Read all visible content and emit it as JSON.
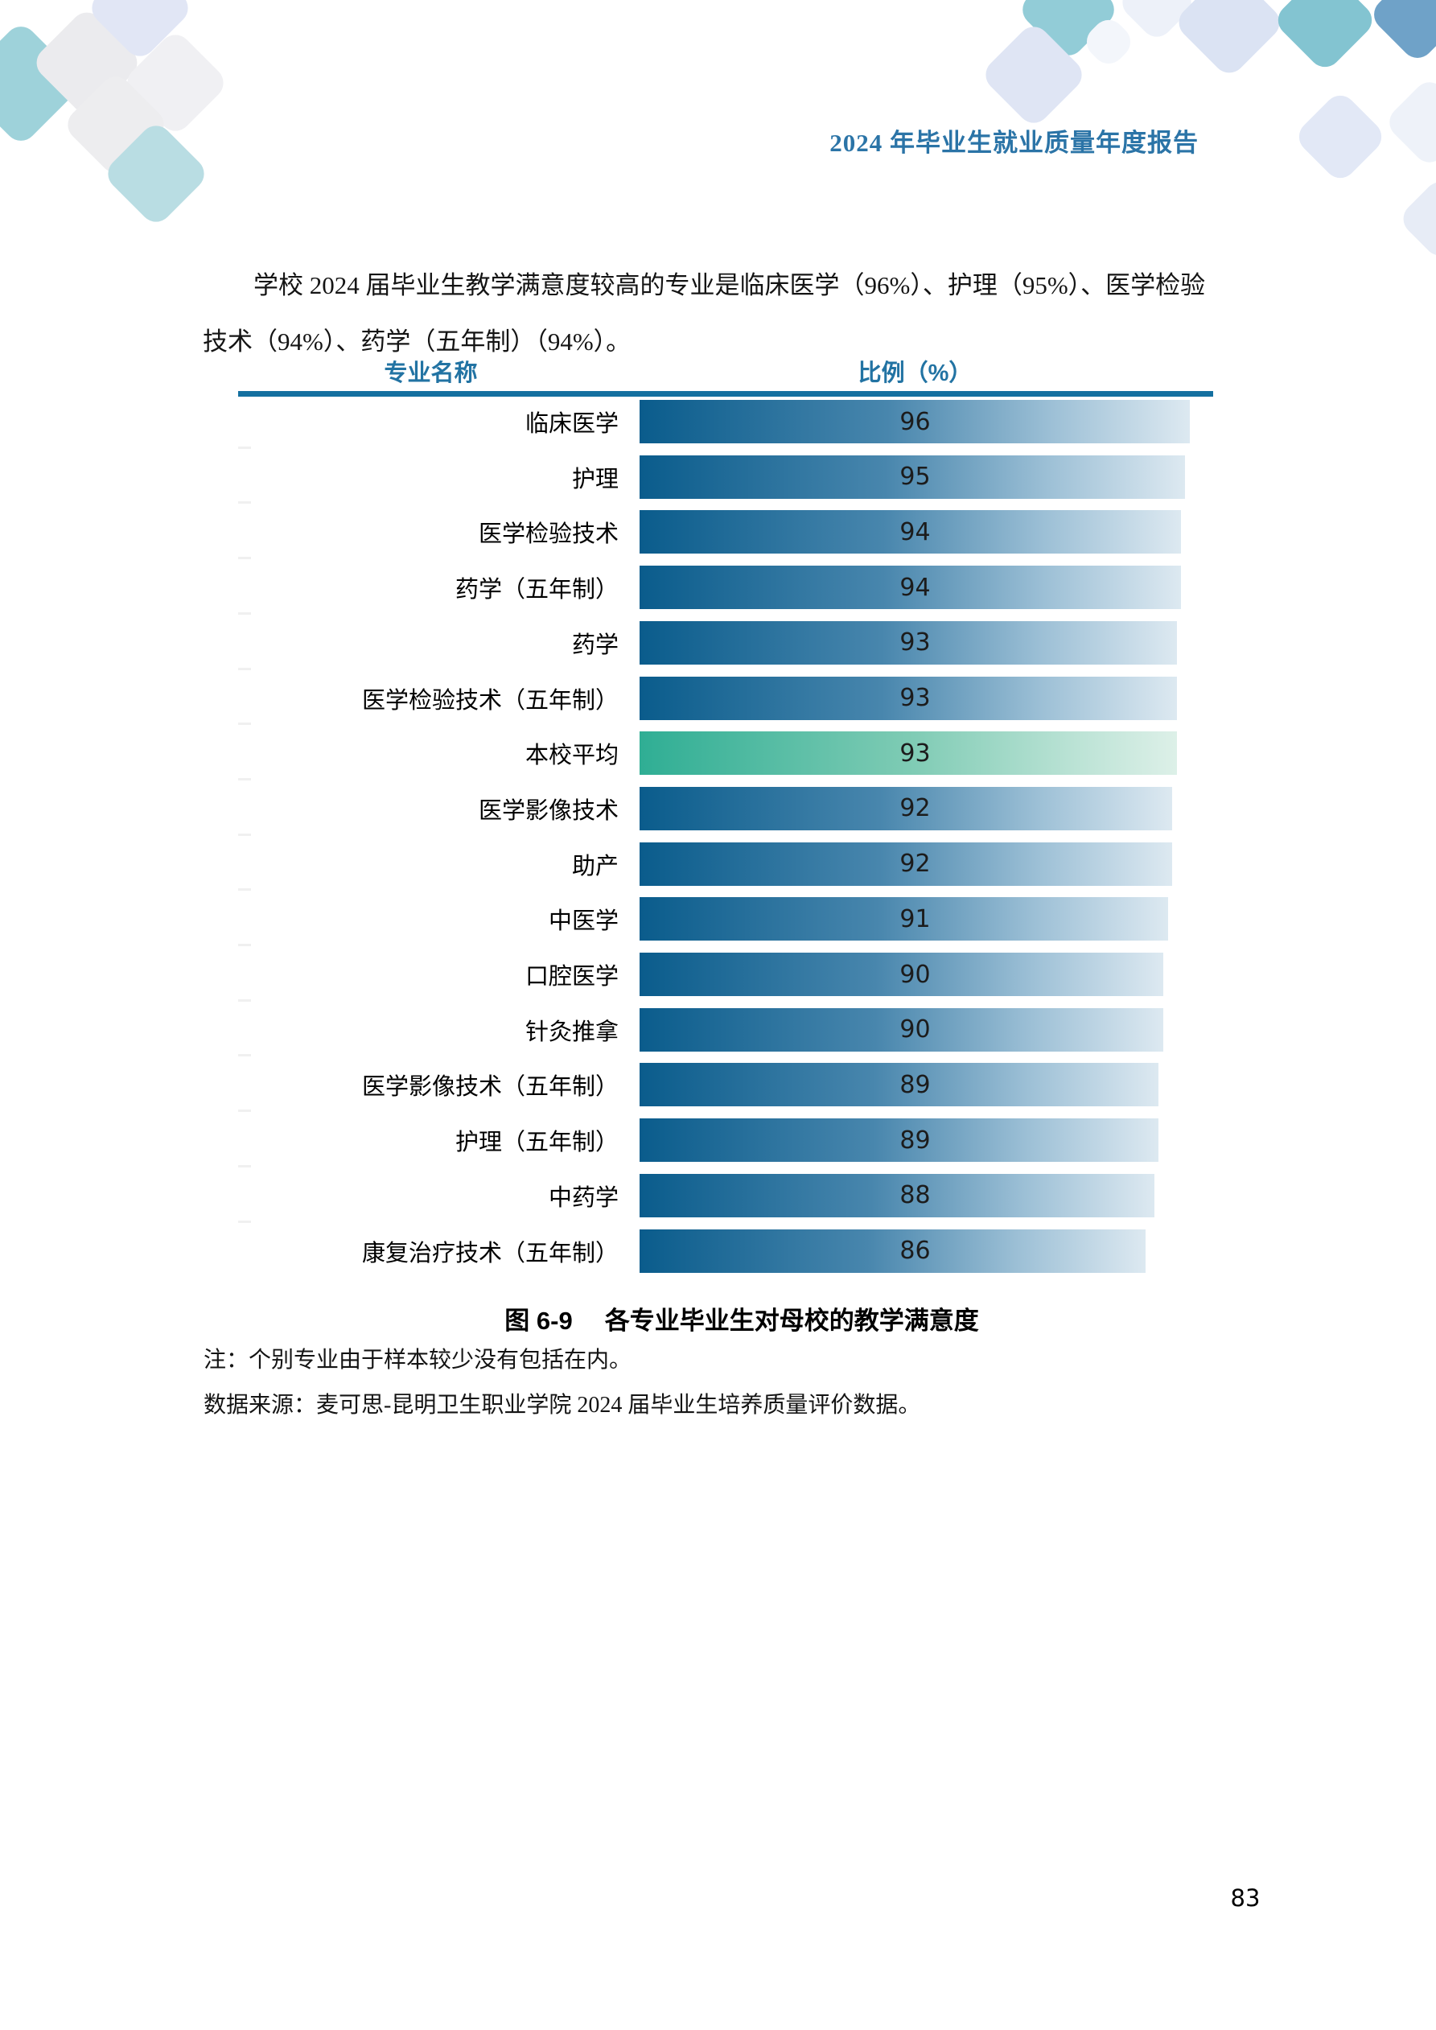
{
  "header": {
    "title": "2024 年毕业生就业质量年度报告"
  },
  "paragraph": {
    "line1": "学校 2024 届毕业生教学满意度较高的专业是临床医学（96%）、护理（95%）、医学检验",
    "line2": "技术（94%）、药学（五年制）（94%）。"
  },
  "chart_data": {
    "type": "bar",
    "orientation": "horizontal",
    "col_headers": {
      "name": "专业名称",
      "value": "比例（%）"
    },
    "categories": [
      "临床医学",
      "护理",
      "医学检验技术",
      "药学（五年制）",
      "药学",
      "医学检验技术（五年制）",
      "本校平均",
      "医学影像技术",
      "助产",
      "中医学",
      "口腔医学",
      "针灸推拿",
      "医学影像技术（五年制）",
      "护理（五年制）",
      "中药学",
      "康复治疗技术（五年制）"
    ],
    "values": [
      96,
      95,
      94,
      94,
      93,
      93,
      93,
      92,
      92,
      91,
      90,
      90,
      89,
      89,
      88,
      86
    ],
    "highlight_index": 6,
    "highlight_label": "本校平均",
    "value_unit": "%",
    "xlim": [
      0,
      100
    ],
    "grid": false,
    "legend": false,
    "colors": {
      "bar_gradient_start": "#0a5c8c",
      "bar_gradient_end": "#dde9f1",
      "avg_gradient_start": "#2fae94",
      "avg_gradient_end": "#ddf0e8",
      "header_text": "#2273a3",
      "divider": "#1470a0"
    },
    "title": "各专业毕业生对母校的教学满意度"
  },
  "caption": {
    "figure_label": "图 6-9",
    "text": "各专业毕业生对母校的教学满意度"
  },
  "notes": {
    "sample": "注：个别专业由于样本较少没有包括在内。",
    "source": "数据来源：麦可思-昆明卫生职业学院 2024 届毕业生培养质量评价数据。"
  },
  "page": {
    "number": "83"
  }
}
